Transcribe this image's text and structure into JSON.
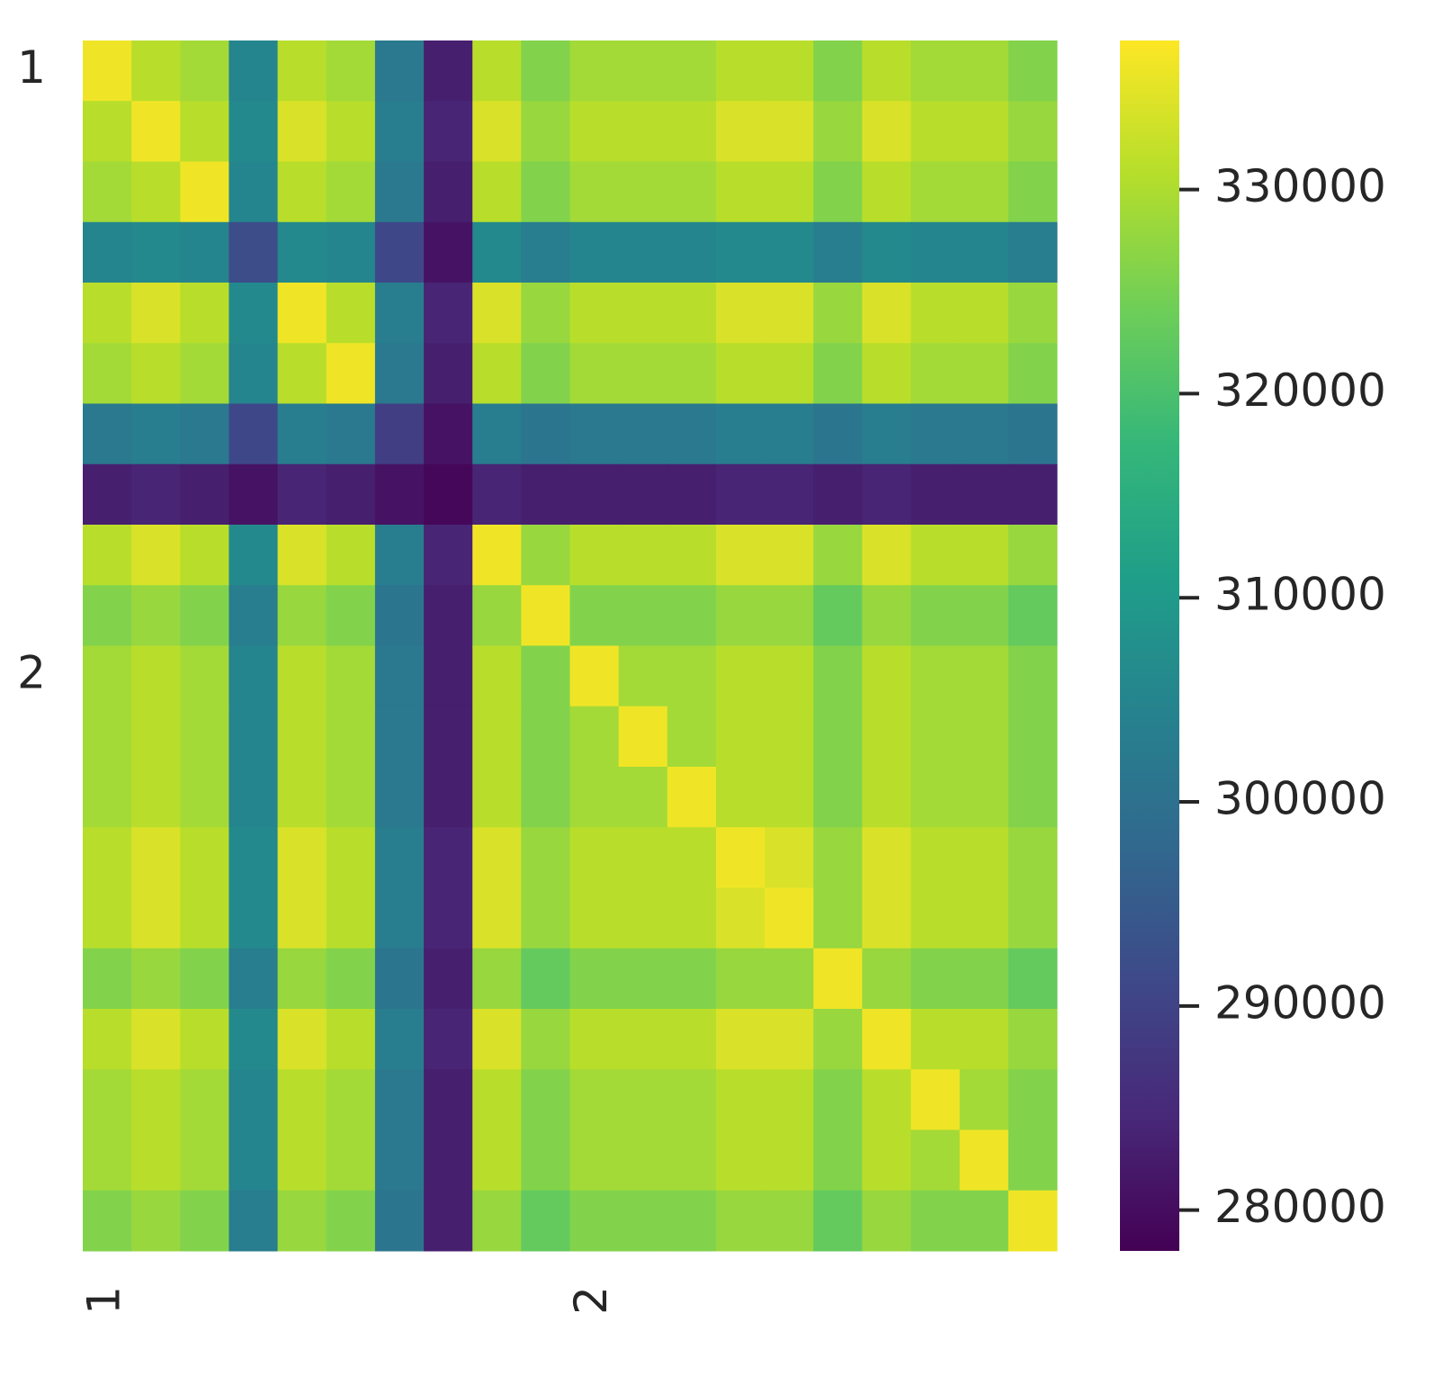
{
  "chart_data": {
    "type": "heatmap",
    "colormap": "viridis",
    "x_categories": [
      "1",
      null,
      null,
      null,
      null,
      null,
      null,
      null,
      null,
      null,
      "2",
      null,
      null,
      null,
      null,
      null,
      null,
      null,
      null,
      null
    ],
    "y_categories": [
      "1",
      null,
      null,
      null,
      null,
      null,
      null,
      null,
      null,
      null,
      "2",
      null,
      null,
      null,
      null,
      null,
      null,
      null,
      null,
      null
    ],
    "values": [
      [
        336000,
        331000,
        329000,
        305000,
        331000,
        329000,
        302000,
        283000,
        331000,
        326000,
        329000,
        329000,
        329000,
        331000,
        331000,
        326000,
        331000,
        329000,
        329000,
        326000
      ],
      [
        331000,
        336000,
        331000,
        306000,
        334000,
        331000,
        303000,
        284000,
        334000,
        328000,
        331000,
        331000,
        331000,
        334000,
        334000,
        328000,
        334000,
        331000,
        331000,
        328000
      ],
      [
        329000,
        331000,
        336000,
        305000,
        331000,
        329000,
        302000,
        283000,
        331000,
        326000,
        329000,
        329000,
        329000,
        331000,
        331000,
        326000,
        331000,
        329000,
        329000,
        326000
      ],
      [
        305000,
        306000,
        305000,
        292000,
        306000,
        305000,
        291000,
        281000,
        306000,
        303000,
        305000,
        305000,
        305000,
        306000,
        306000,
        303000,
        306000,
        305000,
        305000,
        303000
      ],
      [
        331000,
        334000,
        331000,
        306000,
        336000,
        331000,
        303000,
        284000,
        334000,
        328000,
        331000,
        331000,
        331000,
        334000,
        334000,
        328000,
        334000,
        331000,
        331000,
        328000
      ],
      [
        329000,
        331000,
        329000,
        305000,
        331000,
        336000,
        302000,
        283000,
        331000,
        326000,
        329000,
        329000,
        329000,
        331000,
        331000,
        326000,
        331000,
        329000,
        329000,
        326000
      ],
      [
        302000,
        303000,
        302000,
        291000,
        303000,
        302000,
        289000,
        281000,
        303000,
        301000,
        302000,
        302000,
        302000,
        303000,
        303000,
        301000,
        303000,
        302000,
        302000,
        301000
      ],
      [
        283000,
        284000,
        283000,
        281000,
        284000,
        283000,
        281000,
        279000,
        284000,
        283000,
        283000,
        283000,
        283000,
        284000,
        284000,
        283000,
        284000,
        283000,
        283000,
        283000
      ],
      [
        331000,
        334000,
        331000,
        306000,
        334000,
        331000,
        303000,
        284000,
        336000,
        328000,
        331000,
        331000,
        331000,
        334000,
        334000,
        328000,
        334000,
        331000,
        331000,
        328000
      ],
      [
        326000,
        328000,
        326000,
        303000,
        328000,
        326000,
        301000,
        283000,
        328000,
        336000,
        326000,
        326000,
        326000,
        328000,
        328000,
        323000,
        328000,
        326000,
        326000,
        323000
      ],
      [
        329000,
        331000,
        329000,
        305000,
        331000,
        329000,
        302000,
        283000,
        331000,
        326000,
        336000,
        329000,
        329000,
        331000,
        331000,
        326000,
        331000,
        329000,
        329000,
        326000
      ],
      [
        329000,
        331000,
        329000,
        305000,
        331000,
        329000,
        302000,
        283000,
        331000,
        326000,
        329000,
        336000,
        329000,
        331000,
        331000,
        326000,
        331000,
        329000,
        329000,
        326000
      ],
      [
        329000,
        331000,
        329000,
        305000,
        331000,
        329000,
        302000,
        283000,
        331000,
        326000,
        329000,
        329000,
        336000,
        331000,
        331000,
        326000,
        331000,
        329000,
        329000,
        326000
      ],
      [
        331000,
        334000,
        331000,
        306000,
        334000,
        331000,
        303000,
        284000,
        334000,
        328000,
        331000,
        331000,
        331000,
        336000,
        334000,
        328000,
        334000,
        331000,
        331000,
        328000
      ],
      [
        331000,
        334000,
        331000,
        306000,
        334000,
        331000,
        303000,
        284000,
        334000,
        328000,
        331000,
        331000,
        331000,
        334000,
        336000,
        328000,
        334000,
        331000,
        331000,
        328000
      ],
      [
        326000,
        328000,
        326000,
        303000,
        328000,
        326000,
        301000,
        283000,
        328000,
        323000,
        326000,
        326000,
        326000,
        328000,
        328000,
        336000,
        328000,
        326000,
        326000,
        323000
      ],
      [
        331000,
        334000,
        331000,
        306000,
        334000,
        331000,
        303000,
        284000,
        334000,
        328000,
        331000,
        331000,
        331000,
        334000,
        334000,
        328000,
        336000,
        331000,
        331000,
        328000
      ],
      [
        329000,
        331000,
        329000,
        305000,
        331000,
        329000,
        302000,
        283000,
        331000,
        326000,
        329000,
        329000,
        329000,
        331000,
        331000,
        326000,
        331000,
        336000,
        329000,
        326000
      ],
      [
        329000,
        331000,
        329000,
        305000,
        331000,
        329000,
        302000,
        283000,
        331000,
        326000,
        329000,
        329000,
        329000,
        331000,
        331000,
        326000,
        331000,
        329000,
        336000,
        326000
      ],
      [
        326000,
        328000,
        326000,
        303000,
        328000,
        326000,
        301000,
        283000,
        328000,
        323000,
        326000,
        326000,
        326000,
        328000,
        328000,
        323000,
        328000,
        326000,
        326000,
        336000
      ]
    ],
    "zlim": [
      278000,
      337300
    ],
    "zticks": [
      280000,
      290000,
      300000,
      310000,
      320000,
      330000
    ]
  }
}
